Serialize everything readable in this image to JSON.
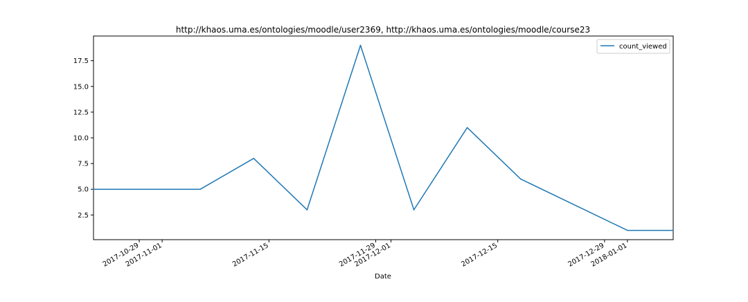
{
  "chart_data": {
    "type": "line",
    "title": "http://khaos.uma.es/ontologies/moodle/user2369, http://khaos.uma.es/ontologies/moodle/course23",
    "xlabel": "Date",
    "ylabel": "",
    "grid": false,
    "legend_position": "top-right",
    "x_tick_labels": [
      "2017-10-29",
      "2017-11-01",
      "2017-11-15",
      "2017-11-29",
      "2017-12-01",
      "2017-12-15",
      "2017-12-29",
      "2018-01-01"
    ],
    "y_tick_labels": [
      "2.5",
      "5.0",
      "7.5",
      "10.0",
      "12.5",
      "15.0",
      "17.5"
    ],
    "xlim": [
      "2017-10-23",
      "2018-01-07"
    ],
    "ylim": [
      0.1,
      19.9
    ],
    "series": [
      {
        "name": "count_viewed",
        "color": "#1f77b4",
        "x": [
          "2017-10-23",
          "2017-11-06",
          "2017-11-13",
          "2017-11-20",
          "2017-11-27",
          "2017-12-04",
          "2017-12-11",
          "2017-12-18",
          "2018-01-01",
          "2018-01-07"
        ],
        "y": [
          5,
          5,
          8,
          3,
          19,
          3,
          11,
          6,
          1,
          1
        ]
      }
    ]
  }
}
